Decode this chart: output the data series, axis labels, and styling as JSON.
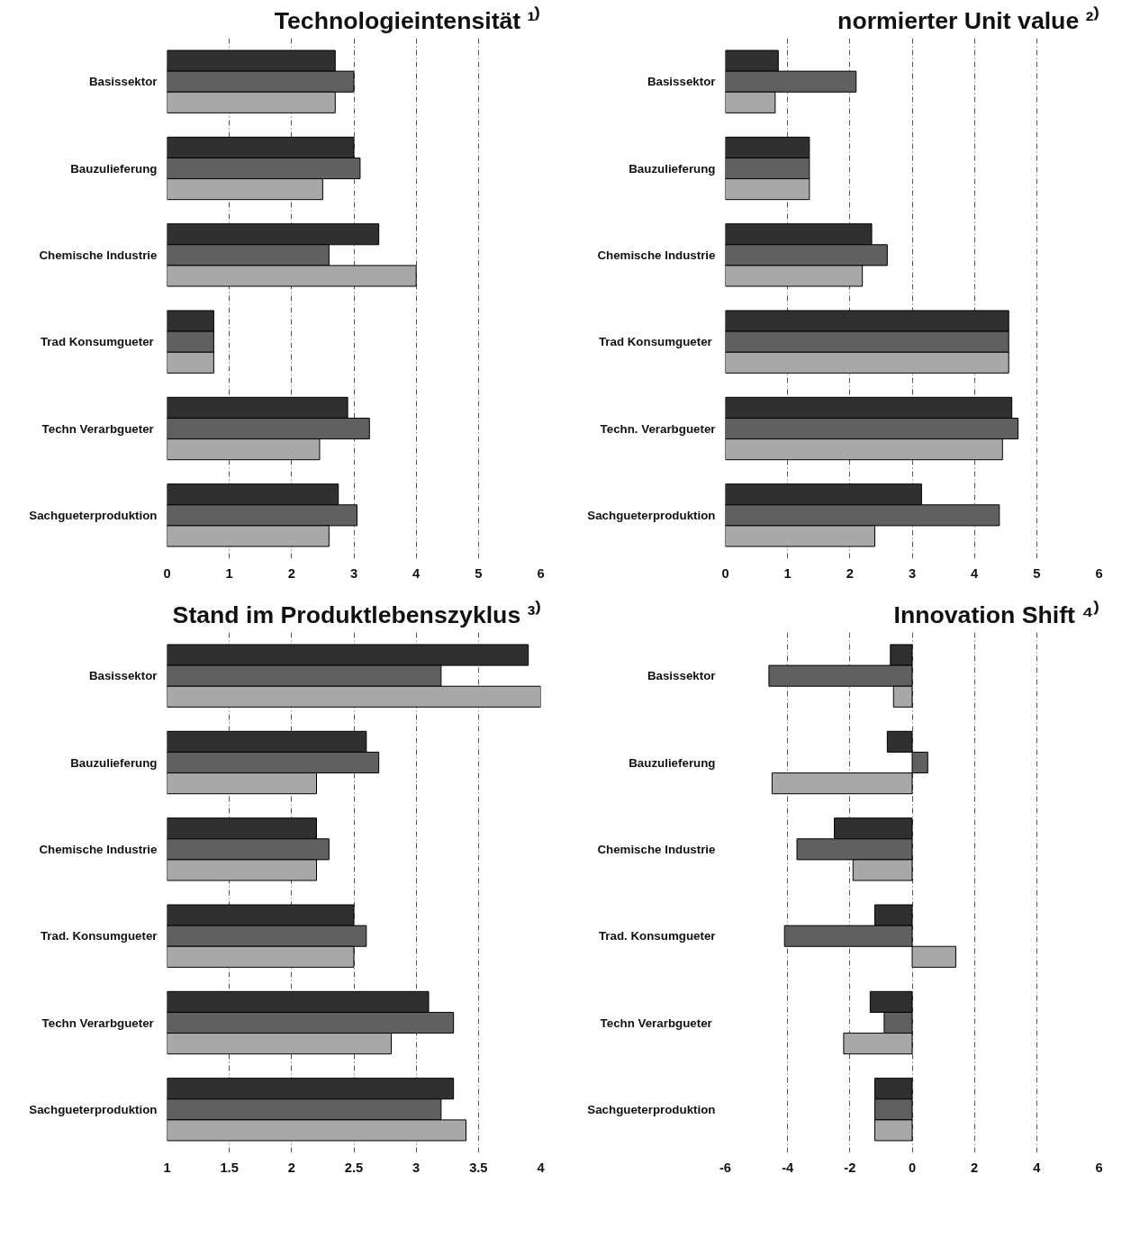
{
  "chart_data": [
    {
      "type": "bar",
      "orientation": "horizontal",
      "title": "Technologieintensität ¹⁾",
      "categories": [
        "Basissektor",
        "Bauzulieferung",
        "Chemische Industrie",
        "Trad  Konsumgueter",
        "Techn  Verarbgueter",
        "Sachgueterproduktion"
      ],
      "series": [
        {
          "color": "#303030",
          "values": [
            2.7,
            3.0,
            3.4,
            0.75,
            2.9,
            2.75
          ]
        },
        {
          "color": "#606060",
          "values": [
            3.0,
            3.1,
            2.6,
            0.75,
            3.25,
            3.05
          ]
        },
        {
          "color": "#a8a8a8",
          "values": [
            2.7,
            2.5,
            4.0,
            0.75,
            2.45,
            2.6
          ]
        }
      ],
      "xlim": [
        0,
        6
      ],
      "xticks": [
        0,
        1,
        2,
        3,
        4,
        5,
        6
      ],
      "grid": "x"
    },
    {
      "type": "bar",
      "orientation": "horizontal",
      "title": "normierter Unit value ²⁾",
      "categories": [
        "Basissektor",
        "Bauzulieferung",
        "Chemische Industrie",
        "Trad  Konsumgueter",
        "Techn. Verarbgueter",
        "Sachgueterproduktion"
      ],
      "series": [
        {
          "color": "#303030",
          "values": [
            0.85,
            1.35,
            2.35,
            4.55,
            4.6,
            3.15
          ]
        },
        {
          "color": "#606060",
          "values": [
            2.1,
            1.35,
            2.6,
            4.55,
            4.7,
            4.4
          ]
        },
        {
          "color": "#a8a8a8",
          "values": [
            0.8,
            1.35,
            2.2,
            4.55,
            4.45,
            2.4
          ]
        }
      ],
      "xlim": [
        0,
        6
      ],
      "xticks": [
        0,
        1,
        2,
        3,
        4,
        5,
        6
      ],
      "grid": "x"
    },
    {
      "type": "bar",
      "orientation": "horizontal",
      "title": "Stand im Produktlebenszyklus ³⁾",
      "categories": [
        "Basissektor",
        "Bauzulieferung",
        "Chemische Industrie",
        "Trad. Konsumgueter",
        "Techn  Verarbgueter",
        "Sachgueterproduktion"
      ],
      "series": [
        {
          "color": "#303030",
          "values": [
            3.9,
            2.6,
            2.2,
            2.5,
            3.1,
            3.3
          ]
        },
        {
          "color": "#606060",
          "values": [
            3.2,
            2.7,
            2.3,
            2.6,
            3.3,
            3.2
          ]
        },
        {
          "color": "#a8a8a8",
          "values": [
            4.0,
            2.2,
            2.2,
            2.5,
            2.8,
            3.4
          ]
        }
      ],
      "xlim": [
        1,
        4
      ],
      "xticks": [
        1,
        1.5,
        2,
        2.5,
        3,
        3.5,
        4
      ],
      "grid": "x"
    },
    {
      "type": "bar",
      "orientation": "horizontal",
      "title": "Innovation Shift ⁴⁾",
      "categories": [
        "Basissektor",
        "Bauzulieferung",
        "Chemische Industrie",
        "Trad. Konsumgueter",
        "Techn  Verarbgueter",
        "Sachgueterproduktion"
      ],
      "series": [
        {
          "color": "#303030",
          "values": [
            -0.7,
            -0.8,
            -2.5,
            -1.2,
            -1.35,
            -1.2
          ]
        },
        {
          "color": "#606060",
          "values": [
            -4.6,
            0.5,
            -3.7,
            -4.1,
            -0.9,
            -1.2
          ]
        },
        {
          "color": "#a8a8a8",
          "values": [
            -0.6,
            -4.5,
            -1.9,
            1.4,
            -2.2,
            -1.2
          ]
        }
      ],
      "xlim": [
        -6,
        6
      ],
      "xticks": [
        -6,
        -4,
        -2,
        0,
        2,
        4,
        6
      ],
      "grid": "x"
    }
  ]
}
